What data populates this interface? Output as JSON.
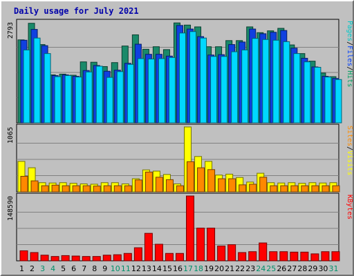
{
  "chart_data": {
    "type": "bar",
    "title": "Daily usage for July 2021",
    "days": [
      "1",
      "2",
      "3",
      "4",
      "5",
      "6",
      "7",
      "8",
      "9",
      "10",
      "11",
      "12",
      "13",
      "14",
      "15",
      "16",
      "17",
      "18",
      "19",
      "20",
      "21",
      "22",
      "23",
      "24",
      "25",
      "26",
      "27",
      "28",
      "29",
      "30",
      "31"
    ],
    "weekend_days": [
      "3",
      "4",
      "10",
      "11",
      "17",
      "18",
      "24",
      "25",
      "31"
    ],
    "panels": [
      {
        "name": "top",
        "ymax": 2793,
        "ymax_label": "2793",
        "legend": [
          {
            "label": "Pages",
            "color": "#00c8c8"
          },
          {
            "label": "/",
            "color": "#000000"
          },
          {
            "label": "Files",
            "color": "#0040ff"
          },
          {
            "label": "/",
            "color": "#000000"
          },
          {
            "label": "Hits",
            "color": "#00a060"
          }
        ],
        "series": [
          {
            "name": "Hits",
            "color": "#1a8a6a",
            "values": [
              2300,
              2760,
              2170,
              1330,
              1350,
              1320,
              1690,
              1680,
              1560,
              1670,
              2130,
              2440,
              2040,
              2110,
              2030,
              2770,
              2710,
              2660,
              2110,
              2110,
              2280,
              2280,
              2660,
              2500,
              2550,
              2620,
              2160,
              1920,
              1710,
              1380,
              1280
            ]
          },
          {
            "name": "Files",
            "color": "#1040e0",
            "values": [
              2290,
              2590,
              2140,
              1310,
              1330,
              1290,
              1450,
              1590,
              1430,
              1460,
              1650,
              2180,
              1900,
              1900,
              1850,
              2700,
              2600,
              2390,
              1880,
              1890,
              2170,
              2240,
              2600,
              2470,
              2510,
              2560,
              2070,
              1790,
              1550,
              1290,
              1230
            ]
          },
          {
            "name": "Pages",
            "color": "#00d8ff",
            "values": [
              2020,
              2350,
              1920,
              1280,
              1310,
              1270,
              1410,
              1570,
              1260,
              1420,
              1620,
              1780,
              1770,
              1780,
              1810,
              2490,
              2530,
              2350,
              1840,
              1840,
              1970,
              2020,
              2340,
              2310,
              2290,
              2250,
              1920,
              1690,
              1540,
              1270,
              1200
            ]
          }
        ]
      },
      {
        "name": "middle",
        "ymax": 1065,
        "ymax_label": "1065",
        "legend": [
          {
            "label": "Sites",
            "color": "#ff8c00"
          },
          {
            "label": "/",
            "color": "#000000"
          },
          {
            "label": "Visits",
            "color": "#ffff00"
          }
        ],
        "series": [
          {
            "name": "Visits",
            "color": "#ffff00",
            "values": [
              500,
              395,
              150,
              145,
              150,
              140,
              130,
              125,
              150,
              150,
              130,
              215,
              360,
              340,
              285,
              130,
              1065,
              580,
              500,
              275,
              290,
              235,
              160,
              305,
              150,
              145,
              150,
              140,
              150,
              145,
              150
            ]
          },
          {
            "name": "Sites",
            "color": "#ff8800",
            "values": [
              255,
              180,
              100,
              110,
              100,
              100,
              100,
              95,
              100,
              100,
              100,
              195,
              325,
              240,
              200,
              100,
              495,
              395,
              365,
              215,
              215,
              115,
              125,
              240,
              100,
              100,
              100,
              100,
              100,
              100,
              100
            ]
          }
        ]
      },
      {
        "name": "bottom",
        "ymax": 148590,
        "ymax_label": "148590",
        "legend": [
          {
            "label": "KBytes",
            "color": "#ff0000"
          }
        ],
        "series": [
          {
            "name": "KBytes",
            "color": "#ff0000",
            "values": [
              23000,
              19000,
              13000,
              10000,
              12000,
              11000,
              10000,
              10000,
              13000,
              14000,
              17000,
              30000,
              63000,
              38000,
              17000,
              17000,
              148590,
              75000,
              75000,
              34000,
              37000,
              19000,
              21000,
              41000,
              21000,
              21000,
              20000,
              20000,
              16000,
              21000,
              21000
            ]
          }
        ]
      }
    ]
  }
}
